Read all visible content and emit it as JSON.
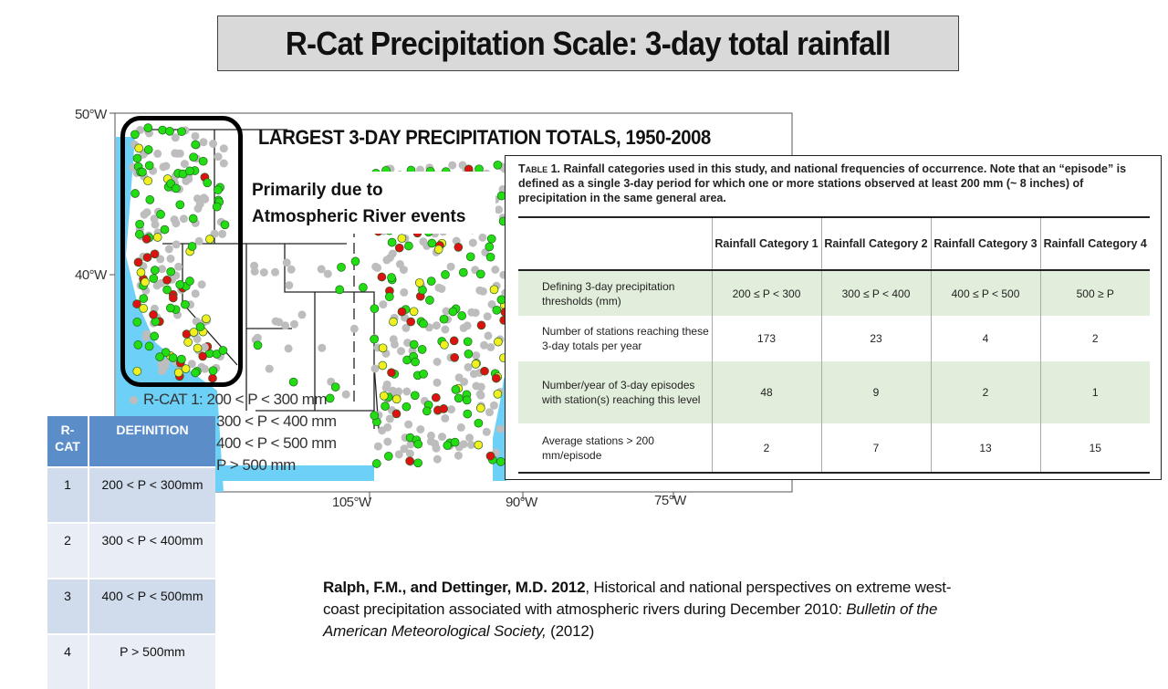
{
  "slide": {
    "title": "R-Cat Precipitation Scale:  3-day total rainfall"
  },
  "map": {
    "title": "LARGEST 3-DAY PRECIPITATION TOTALS, 1950-2008",
    "note_line1": "Primarily due to",
    "note_line2": "Atmospheric River events",
    "lat_labels": [
      "50°W",
      "40°W"
    ],
    "lon_labels": [
      "105°W",
      "90°W",
      "75°W"
    ],
    "legend": [
      {
        "label": "R-CAT 1: 200 < P < 300 mm",
        "color": "#00dd00"
      },
      {
        "label": "300 < P < 400 mm",
        "color": "#eeee00"
      },
      {
        "label": "400 < P < 500 mm",
        "color": "#dd0000"
      },
      {
        "label": "P > 500 mm",
        "color": "#dd0000"
      }
    ],
    "colors": {
      "ocean": "#6dd1f7",
      "station_gray": "#bdbdbd",
      "cat1": "#22dd11",
      "cat2": "#f2ee22",
      "cat3": "#dd1111"
    }
  },
  "paper_table": {
    "caption_prefix": "Table 1.",
    "caption": "Rainfall categories used in this study, and national frequencies of occurrence. Note that an “episode” is defined as a single 3-day period for which one or more stations observed at least 200 mm (~ 8 inches) of precipitation in the same general area.",
    "headers": [
      "",
      "Rainfall Category 1",
      "Rainfall Category 2",
      "Rainfall Category 3",
      "Rainfall Category 4"
    ],
    "rows": [
      {
        "label": "Defining 3-day precipitation thresholds (mm)",
        "values": [
          "200 ≤ P < 300",
          "300 ≤ P < 400",
          "400 ≤ P < 500",
          "500 ≥ P"
        ]
      },
      {
        "label": "Number of stations reaching these 3-day totals per year",
        "values": [
          "173",
          "23",
          "4",
          "2"
        ]
      },
      {
        "label": "Number/year of 3-day episodes with station(s) reaching this level",
        "values": [
          "48",
          "9",
          "2",
          "1"
        ]
      },
      {
        "label": "Average stations > 200 mm/episode",
        "values": [
          "2",
          "7",
          "13",
          "15"
        ]
      }
    ]
  },
  "rcat_table": {
    "headers": [
      "R-CAT",
      "DEFINITION"
    ],
    "rows": [
      {
        "cat": "1",
        "definition": "200 < P < 300mm"
      },
      {
        "cat": "2",
        "definition": "300 < P < 400mm"
      },
      {
        "cat": "3",
        "definition": "400 < P < 500mm"
      },
      {
        "cat": "4",
        "definition": "P > 500mm"
      }
    ],
    "header_color": "#5b8dc9"
  },
  "citation": {
    "authors": "Ralph, F.M., and Dettinger, M.D. 2012",
    "text": ", Historical and national perspectives on extreme west-coast precipitation associated with atmospheric rivers during December 2010: ",
    "journal": "Bulletin of the American Meteorological Society,",
    "year": " (2012)"
  }
}
